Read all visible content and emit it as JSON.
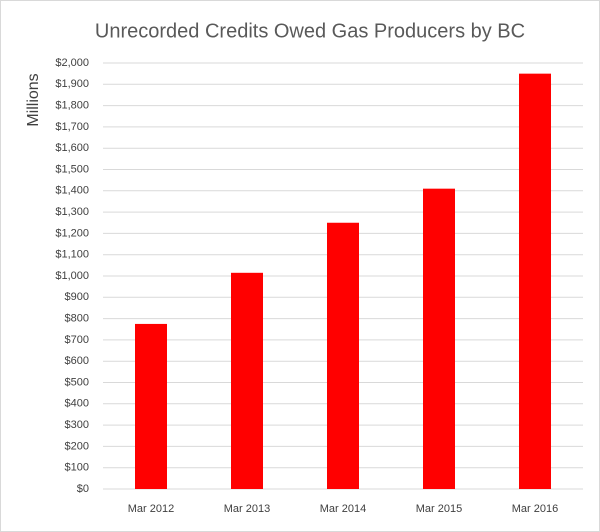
{
  "chart_data": {
    "type": "bar",
    "title": "Unrecorded Credits Owed Gas Producers by BC",
    "y_label": "Millions",
    "categories": [
      "Mar 2012",
      "Mar 2013",
      "Mar 2014",
      "Mar 2015",
      "Mar 2016"
    ],
    "values": [
      775,
      1015,
      1250,
      1410,
      1950
    ],
    "color": "#ff0000",
    "ylim": [
      0,
      2000
    ],
    "yticks": [
      {
        "value": 0,
        "label": "$0"
      },
      {
        "value": 100,
        "label": "$100"
      },
      {
        "value": 200,
        "label": "$200"
      },
      {
        "value": 300,
        "label": "$300"
      },
      {
        "value": 400,
        "label": "$400"
      },
      {
        "value": 500,
        "label": "$500"
      },
      {
        "value": 600,
        "label": "$600"
      },
      {
        "value": 700,
        "label": "$700"
      },
      {
        "value": 800,
        "label": "$800"
      },
      {
        "value": 900,
        "label": "$900"
      },
      {
        "value": 1000,
        "label": "$1,000"
      },
      {
        "value": 1100,
        "label": "$1,100"
      },
      {
        "value": 1200,
        "label": "$1,200"
      },
      {
        "value": 1300,
        "label": "$1,300"
      },
      {
        "value": 1400,
        "label": "$1,400"
      },
      {
        "value": 1500,
        "label": "$1,500"
      },
      {
        "value": 1600,
        "label": "$1,600"
      },
      {
        "value": 1700,
        "label": "$1,700"
      },
      {
        "value": 1800,
        "label": "$1,800"
      },
      {
        "value": 1900,
        "label": "$1,900"
      },
      {
        "value": 2000,
        "label": "$2,000"
      }
    ],
    "grid": true
  }
}
